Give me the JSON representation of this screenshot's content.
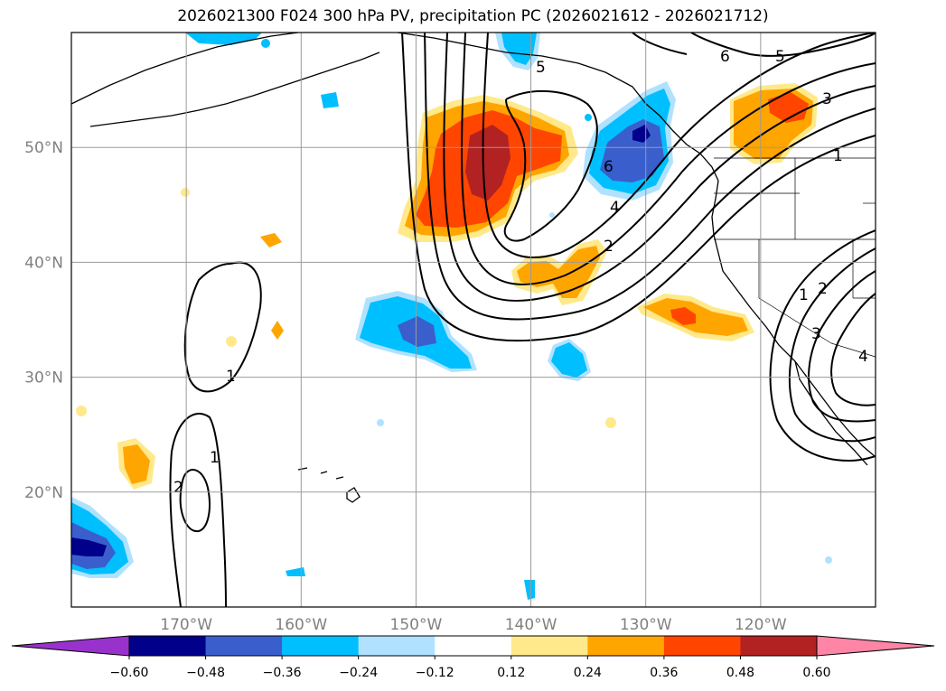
{
  "title": "2026021300 F024 300 hPa PV, precipitation PC (2026021612 - 2026021712)",
  "map": {
    "lon_min": -180,
    "lon_max": -110,
    "lat_min": 10,
    "lat_max": 60,
    "lon_ticks": [
      {
        "value": -170,
        "label": "170°W"
      },
      {
        "value": -160,
        "label": "160°W"
      },
      {
        "value": -150,
        "label": "150°W"
      },
      {
        "value": -140,
        "label": "140°W"
      },
      {
        "value": -130,
        "label": "130°W"
      },
      {
        "value": -120,
        "label": "120°W"
      }
    ],
    "lat_ticks": [
      {
        "value": 20,
        "label": "20°N"
      },
      {
        "value": 30,
        "label": "30°N"
      },
      {
        "value": 40,
        "label": "40°N"
      },
      {
        "value": 50,
        "label": "50°N"
      }
    ],
    "grid": true,
    "pv_contour_labels": [
      "5",
      "6",
      "5",
      "3",
      "1",
      "6",
      "4",
      "2",
      "1",
      "2",
      "3",
      "4",
      "1",
      "1",
      "2"
    ]
  },
  "colorbar": {
    "ticks": [
      "−0.60",
      "−0.48",
      "−0.36",
      "−0.24",
      "−0.12",
      "0.12",
      "0.24",
      "0.36",
      "0.48",
      "0.60"
    ],
    "colors": [
      "#9932cc",
      "#00008b",
      "#3a5fcd",
      "#00bfff",
      "#b0e2ff",
      "#ffffff",
      "#ffe98a",
      "#ffa500",
      "#ff4500",
      "#b22222",
      "#ff85a6"
    ]
  }
}
